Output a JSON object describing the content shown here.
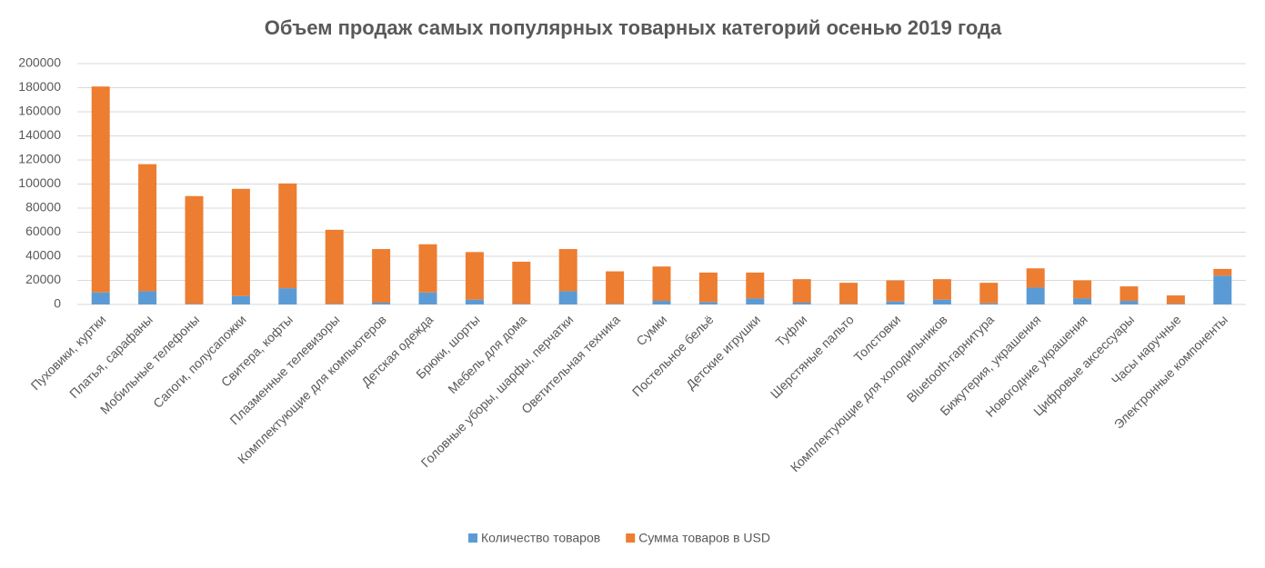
{
  "chart_data": {
    "type": "stacked_bar",
    "title": "Объем продаж самых популярных товарных категорий осенью 2019 года",
    "categories": [
      "Пуховики, куртки",
      "Платья, сарафаны",
      "Мобильные телефоны",
      "Сапоги, полусапожки",
      "Свитера, кофты",
      "Плазменные телевизоры",
      "Комплектующие для компьютеров",
      "Детская одежда",
      "Брюки, шорты",
      "Мебель для дома",
      "Головные уборы, шарфы, перчатки",
      "Оветительная техника",
      "Сумки",
      "Постельное бельё",
      "Детские игрушки",
      "Туфли",
      "Шерстяные пальто",
      "Толстовки",
      "Комплектующие для холодильников",
      "Bluetooth-гарнитура",
      "Бижутерия, украшения",
      "Новогодние украшения",
      "Цифровые аксессуары",
      "Часы наручные",
      "Электронные компоненты"
    ],
    "series": [
      {
        "name": "Количество товаров",
        "color": "#5b9bd5",
        "values": [
          10000,
          11000,
          500,
          7000,
          13500,
          500,
          1500,
          10000,
          4000,
          500,
          11000,
          500,
          3000,
          2000,
          5000,
          1500,
          500,
          2500,
          4000,
          1000,
          14000,
          5000,
          3000,
          500,
          24000
        ]
      },
      {
        "name": "Сумма товаров в USD",
        "color": "#ed7d31",
        "values": [
          171000,
          105500,
          89500,
          89000,
          87000,
          61500,
          44500,
          40000,
          39500,
          35000,
          35000,
          27000,
          28500,
          24500,
          21500,
          19500,
          17500,
          17500,
          17000,
          17000,
          16000,
          15000,
          12000,
          7000,
          5500
        ]
      }
    ],
    "ylim": [
      0,
      200000
    ],
    "yticks": [
      0,
      20000,
      40000,
      60000,
      80000,
      100000,
      120000,
      140000,
      160000,
      180000,
      200000
    ],
    "grid": true,
    "legend": "bottom"
  }
}
